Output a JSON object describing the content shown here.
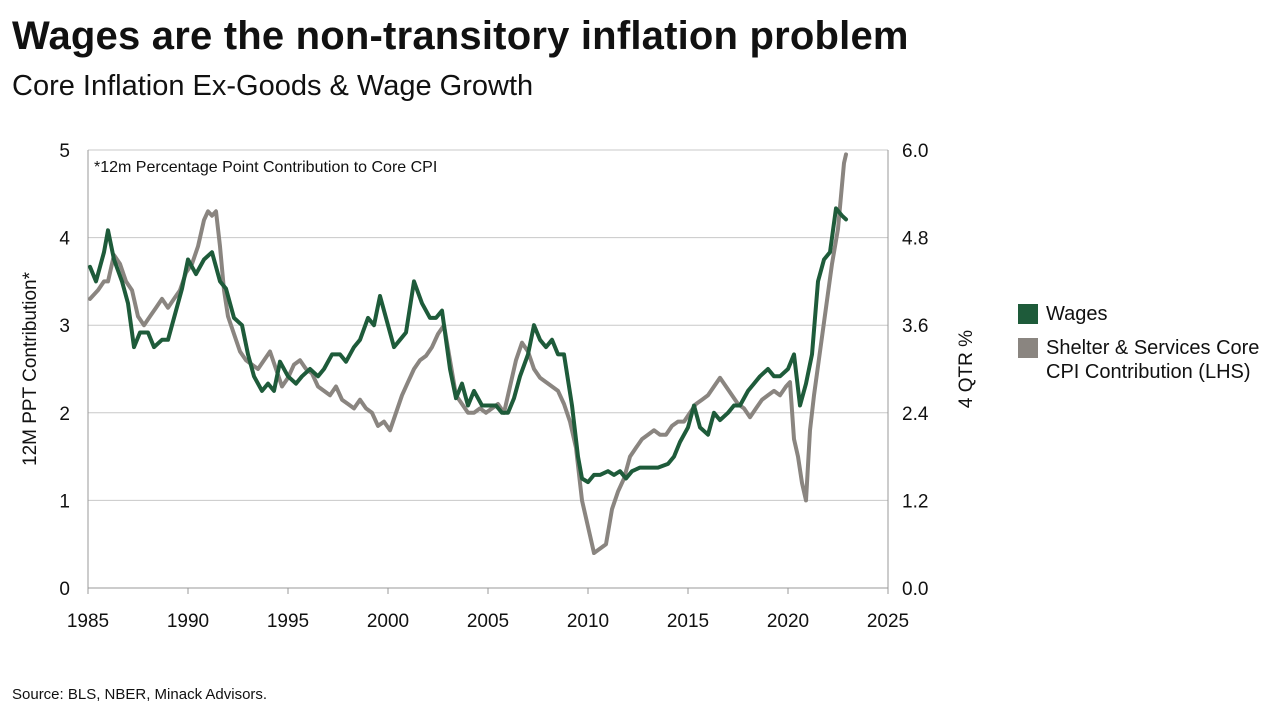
{
  "title": "Wages are the non-transitory inflation problem",
  "subtitle": "Core Inflation Ex-Goods & Wage Growth",
  "source": "Source: BLS, NBER, Minack Advisors.",
  "chart_data": {
    "type": "line",
    "annotation": "*12m Percentage Point Contribution to Core CPI",
    "ylabel_left": "12M PPT Contribution*",
    "ylabel_right": "4 QTR %",
    "xlim": [
      1985,
      2025
    ],
    "xticks": [
      "1985",
      "1990",
      "1995",
      "2000",
      "2005",
      "2010",
      "2015",
      "2020",
      "2025"
    ],
    "ylim_left": [
      0,
      5
    ],
    "yticks_left": [
      "0",
      "1",
      "2",
      "3",
      "4",
      "5"
    ],
    "ylim_right": [
      0,
      6
    ],
    "yticks_right": [
      "0.0",
      "1.2",
      "2.4",
      "3.6",
      "4.8",
      "6.0"
    ],
    "grid": "horizontal",
    "legend_position": "right",
    "series": [
      {
        "name": "Wages",
        "axis": "right",
        "color": "#1e5b3a",
        "x": [
          1985.1,
          1985.4,
          1985.8,
          1986.0,
          1986.3,
          1986.7,
          1987.0,
          1987.3,
          1987.6,
          1988.0,
          1988.3,
          1988.7,
          1989.0,
          1989.5,
          1989.7,
          1990.0,
          1990.4,
          1990.8,
          1991.2,
          1991.6,
          1991.9,
          1992.3,
          1992.7,
          1993.0,
          1993.3,
          1993.7,
          1994.0,
          1994.3,
          1994.6,
          1995.0,
          1995.4,
          1995.7,
          1996.1,
          1996.5,
          1996.8,
          1997.2,
          1997.6,
          1997.9,
          1998.3,
          1998.6,
          1999.0,
          1999.3,
          1999.6,
          2000.0,
          2000.3,
          2000.6,
          2000.9,
          2001.3,
          2001.7,
          2002.1,
          2002.4,
          2002.7,
          2003.1,
          2003.4,
          2003.7,
          2004.0,
          2004.3,
          2004.7,
          2005.0,
          2005.4,
          2005.7,
          2006.0,
          2006.3,
          2006.6,
          2007.0,
          2007.3,
          2007.6,
          2007.9,
          2008.2,
          2008.5,
          2008.8,
          2009.2,
          2009.5,
          2009.7,
          2010.0,
          2010.3,
          2010.6,
          2011.0,
          2011.3,
          2011.6,
          2011.9,
          2012.2,
          2012.6,
          2013.0,
          2013.5,
          2014.0,
          2014.3,
          2014.6,
          2015.0,
          2015.3,
          2015.6,
          2016.0,
          2016.3,
          2016.6,
          2017.0,
          2017.3,
          2017.6,
          2018.0,
          2018.3,
          2018.6,
          2019.0,
          2019.3,
          2019.6,
          2020.0,
          2020.3,
          2020.6,
          2020.9,
          2021.2,
          2021.5,
          2021.8,
          2022.1,
          2022.4,
          2022.7,
          2022.9
        ],
        "values": [
          4.4,
          4.2,
          4.6,
          4.9,
          4.5,
          4.2,
          3.9,
          3.3,
          3.5,
          3.5,
          3.3,
          3.4,
          3.4,
          3.9,
          4.1,
          4.5,
          4.3,
          4.5,
          4.6,
          4.2,
          4.1,
          3.7,
          3.6,
          3.2,
          2.9,
          2.7,
          2.8,
          2.7,
          3.1,
          2.9,
          2.8,
          2.9,
          3.0,
          2.9,
          3.0,
          3.2,
          3.2,
          3.1,
          3.3,
          3.4,
          3.7,
          3.6,
          4.0,
          3.6,
          3.3,
          3.4,
          3.5,
          4.2,
          3.9,
          3.7,
          3.7,
          3.8,
          3.0,
          2.6,
          2.8,
          2.5,
          2.7,
          2.5,
          2.5,
          2.5,
          2.4,
          2.4,
          2.6,
          2.9,
          3.2,
          3.6,
          3.4,
          3.3,
          3.4,
          3.2,
          3.2,
          2.5,
          1.8,
          1.5,
          1.45,
          1.55,
          1.55,
          1.6,
          1.55,
          1.6,
          1.5,
          1.6,
          1.65,
          1.65,
          1.65,
          1.7,
          1.8,
          2.0,
          2.2,
          2.5,
          2.2,
          2.1,
          2.4,
          2.3,
          2.4,
          2.5,
          2.5,
          2.7,
          2.8,
          2.9,
          3.0,
          2.9,
          2.9,
          3.0,
          3.2,
          2.5,
          2.8,
          3.2,
          4.2,
          4.5,
          4.6,
          5.2,
          5.1,
          5.05
        ]
      },
      {
        "name": "Shelter & Services Core CPI Contribution (LHS)",
        "axis": "left",
        "color": "#8a8580",
        "x": [
          1985.1,
          1985.5,
          1985.8,
          1986.0,
          1986.3,
          1986.6,
          1986.9,
          1987.2,
          1987.5,
          1987.8,
          1988.1,
          1988.4,
          1988.7,
          1989.0,
          1989.3,
          1989.6,
          1989.9,
          1990.2,
          1990.5,
          1990.8,
          1991.0,
          1991.2,
          1991.4,
          1991.6,
          1991.8,
          1992.0,
          1992.3,
          1992.6,
          1992.9,
          1993.2,
          1993.5,
          1993.8,
          1994.1,
          1994.4,
          1994.7,
          1995.0,
          1995.3,
          1995.6,
          1995.9,
          1996.2,
          1996.5,
          1996.8,
          1997.1,
          1997.4,
          1997.7,
          1998.0,
          1998.3,
          1998.6,
          1998.9,
          1999.2,
          1999.5,
          1999.8,
          2000.1,
          2000.4,
          2000.7,
          2001.0,
          2001.3,
          2001.6,
          2001.9,
          2002.2,
          2002.5,
          2002.8,
          2003.1,
          2003.4,
          2003.7,
          2004.0,
          2004.3,
          2004.6,
          2004.9,
          2005.2,
          2005.5,
          2005.8,
          2006.1,
          2006.4,
          2006.7,
          2007.0,
          2007.3,
          2007.6,
          2007.9,
          2008.2,
          2008.5,
          2008.8,
          2009.1,
          2009.4,
          2009.7,
          2010.0,
          2010.3,
          2010.6,
          2010.9,
          2011.2,
          2011.5,
          2011.8,
          2012.1,
          2012.4,
          2012.7,
          2013.0,
          2013.3,
          2013.6,
          2013.9,
          2014.2,
          2014.5,
          2014.8,
          2015.1,
          2015.4,
          2015.7,
          2016.0,
          2016.3,
          2016.6,
          2016.9,
          2017.2,
          2017.5,
          2017.8,
          2018.1,
          2018.4,
          2018.7,
          2019.0,
          2019.3,
          2019.6,
          2019.9,
          2020.1,
          2020.3,
          2020.5,
          2020.7,
          2020.9,
          2021.1,
          2021.3,
          2021.6,
          2021.9,
          2022.2,
          2022.5,
          2022.8,
          2022.9
        ],
        "values": [
          3.3,
          3.4,
          3.5,
          3.5,
          3.8,
          3.7,
          3.5,
          3.4,
          3.1,
          3.0,
          3.1,
          3.2,
          3.3,
          3.2,
          3.3,
          3.4,
          3.6,
          3.7,
          3.9,
          4.2,
          4.3,
          4.25,
          4.3,
          3.9,
          3.4,
          3.1,
          2.9,
          2.7,
          2.6,
          2.55,
          2.5,
          2.6,
          2.7,
          2.5,
          2.3,
          2.4,
          2.55,
          2.6,
          2.5,
          2.45,
          2.3,
          2.25,
          2.2,
          2.3,
          2.15,
          2.1,
          2.05,
          2.15,
          2.05,
          2.0,
          1.85,
          1.9,
          1.8,
          2.0,
          2.2,
          2.35,
          2.5,
          2.6,
          2.65,
          2.75,
          2.9,
          3.0,
          2.6,
          2.2,
          2.1,
          2.0,
          2.0,
          2.05,
          2.0,
          2.05,
          2.1,
          2.0,
          2.3,
          2.6,
          2.8,
          2.7,
          2.5,
          2.4,
          2.35,
          2.3,
          2.25,
          2.1,
          1.9,
          1.6,
          1.0,
          0.7,
          0.4,
          0.45,
          0.5,
          0.9,
          1.1,
          1.25,
          1.5,
          1.6,
          1.7,
          1.75,
          1.8,
          1.75,
          1.75,
          1.85,
          1.9,
          1.9,
          2.0,
          2.1,
          2.15,
          2.2,
          2.3,
          2.4,
          2.3,
          2.2,
          2.1,
          2.05,
          1.95,
          2.05,
          2.15,
          2.2,
          2.25,
          2.2,
          2.3,
          2.35,
          1.7,
          1.5,
          1.2,
          1.0,
          1.8,
          2.2,
          2.7,
          3.2,
          3.7,
          4.1,
          4.85,
          4.95
        ]
      }
    ]
  }
}
